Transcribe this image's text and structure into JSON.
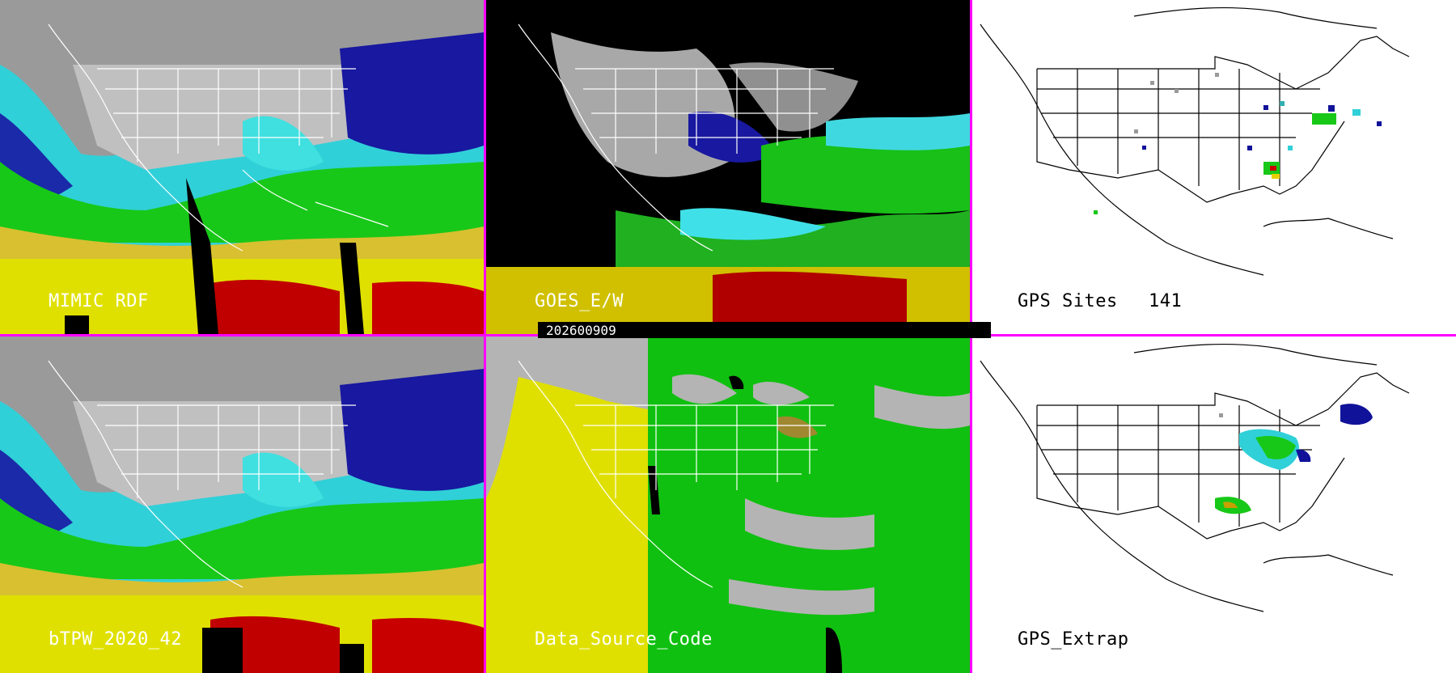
{
  "panels": {
    "mimic_rdf": {
      "label": "MIMIC RDF"
    },
    "goes_ew": {
      "label": "GOES_E/W"
    },
    "gps_sites": {
      "label": "GPS Sites",
      "count": "141"
    },
    "btpw": {
      "label": "bTPW_2020_42"
    },
    "data_source": {
      "label": "Data_Source_Code"
    },
    "gps_extrap": {
      "label": "GPS_Extrap"
    }
  },
  "timestamp": "202600909",
  "colors": {
    "separator": "#ff00ff",
    "tpw_gray": "#b8b8b8",
    "tpw_darkblue": "#10129a",
    "tpw_cyan": "#38e0e8",
    "tpw_green": "#18d018",
    "tpw_olive": "#a08830",
    "tpw_yellow": "#e8e000",
    "tpw_red": "#c80000",
    "source_yellow": "#e0e000",
    "source_green": "#10c010",
    "source_gray": "#b4b4b4"
  }
}
